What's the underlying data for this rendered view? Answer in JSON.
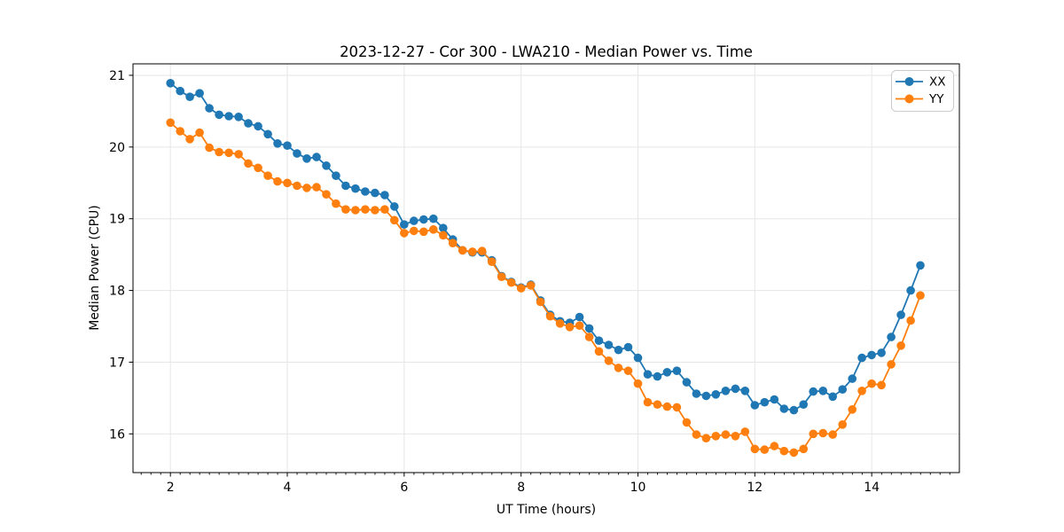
{
  "figure": {
    "title": "2023-12-27 - Cor 300 - LWA210 - Median Power vs. Time",
    "xlabel": "UT Time (hours)",
    "ylabel": "Median Power (CPU)"
  },
  "legend": {
    "position": "upper right",
    "items": [
      {
        "label": "XX",
        "color": "#1f77b4"
      },
      {
        "label": "YY",
        "color": "#ff7f0e"
      }
    ]
  },
  "chart_data": {
    "type": "line",
    "title": "2023-12-27 - Cor 300 - LWA210 - Median Power vs. Time",
    "xlabel": "UT Time (hours)",
    "ylabel": "Median Power (CPU)",
    "xlim": [
      1.36,
      15.5
    ],
    "ylim": [
      15.46,
      21.16
    ],
    "x_ticks": [
      2,
      4,
      6,
      8,
      10,
      12,
      14
    ],
    "y_ticks": [
      16,
      17,
      18,
      19,
      20,
      21
    ],
    "x_minor_tick_step": 0.1667,
    "grid": true,
    "legend_position": "upper right",
    "marker": "o",
    "background": "#ffffff",
    "grid_color": "#e6e6e6",
    "x": [
      2,
      2.167,
      2.333,
      2.5,
      2.667,
      2.833,
      3,
      3.167,
      3.333,
      3.5,
      3.667,
      3.833,
      4,
      4.167,
      4.333,
      4.5,
      4.667,
      4.833,
      5,
      5.167,
      5.333,
      5.5,
      5.667,
      5.833,
      6,
      6.167,
      6.333,
      6.5,
      6.667,
      6.833,
      7,
      7.167,
      7.333,
      7.5,
      7.667,
      7.833,
      8,
      8.167,
      8.333,
      8.5,
      8.667,
      8.833,
      9,
      9.167,
      9.333,
      9.5,
      9.667,
      9.833,
      10,
      10.167,
      10.333,
      10.5,
      10.667,
      10.833,
      11,
      11.167,
      11.333,
      11.5,
      11.667,
      11.833,
      12,
      12.167,
      12.333,
      12.5,
      12.667,
      12.833,
      13,
      13.167,
      13.333,
      13.5,
      13.667,
      13.833,
      14,
      14.167,
      14.333,
      14.5,
      14.667,
      14.833
    ],
    "series": [
      {
        "name": "XX",
        "color": "#1f77b4",
        "values": [
          20.89,
          20.78,
          20.7,
          20.75,
          20.54,
          20.45,
          20.43,
          20.42,
          20.33,
          20.29,
          20.18,
          20.05,
          20.02,
          19.91,
          19.84,
          19.86,
          19.74,
          19.6,
          19.46,
          19.42,
          19.38,
          19.36,
          19.33,
          19.17,
          18.92,
          18.97,
          18.99,
          19.0,
          18.87,
          18.71,
          18.56,
          18.53,
          18.53,
          18.42,
          18.2,
          18.12,
          18.04,
          18.08,
          17.86,
          17.66,
          17.57,
          17.55,
          17.63,
          17.47,
          17.3,
          17.24,
          17.17,
          17.21,
          17.06,
          16.83,
          16.8,
          16.86,
          16.88,
          16.72,
          16.56,
          16.53,
          16.55,
          16.6,
          16.63,
          16.6,
          16.4,
          16.44,
          16.48,
          16.35,
          16.33,
          16.41,
          16.59,
          16.6,
          16.52,
          16.62,
          16.77,
          17.06,
          17.1,
          17.13,
          17.35,
          17.66,
          18.0,
          18.35
        ]
      },
      {
        "name": "YY",
        "color": "#ff7f0e",
        "values": [
          20.34,
          20.22,
          20.11,
          20.2,
          19.99,
          19.93,
          19.92,
          19.9,
          19.77,
          19.71,
          19.6,
          19.52,
          19.5,
          19.46,
          19.43,
          19.44,
          19.34,
          19.21,
          19.13,
          19.12,
          19.13,
          19.12,
          19.13,
          18.98,
          18.8,
          18.83,
          18.82,
          18.85,
          18.77,
          18.66,
          18.56,
          18.54,
          18.55,
          18.4,
          18.19,
          18.11,
          18.03,
          18.07,
          17.84,
          17.64,
          17.54,
          17.49,
          17.51,
          17.35,
          17.15,
          17.02,
          16.92,
          16.88,
          16.7,
          16.44,
          16.41,
          16.38,
          16.37,
          16.16,
          15.99,
          15.94,
          15.97,
          15.99,
          15.97,
          16.03,
          15.79,
          15.78,
          15.83,
          15.76,
          15.74,
          15.79,
          16.0,
          16.01,
          15.99,
          16.13,
          16.34,
          16.6,
          16.7,
          16.68,
          16.97,
          17.23,
          17.58,
          17.93
        ]
      }
    ]
  }
}
